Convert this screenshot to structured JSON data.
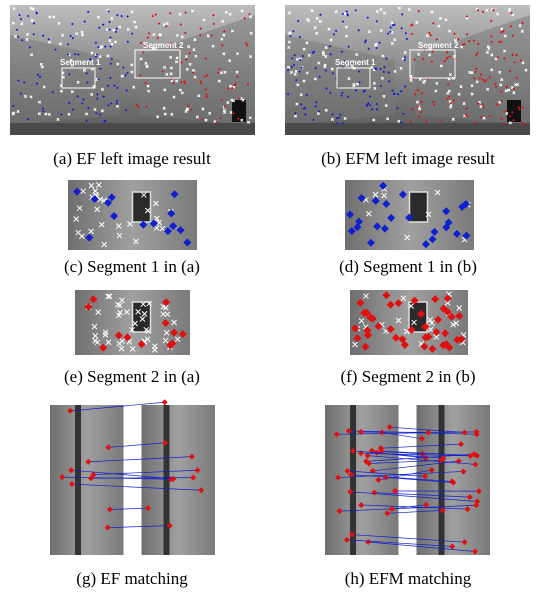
{
  "figure": {
    "panels": [
      {
        "caption": "(a) EF left image result",
        "labels": [
          "Segment 1",
          "Segment 2"
        ]
      },
      {
        "caption": "(b) EFM left image result",
        "labels": [
          "Segment 1",
          "Segment 2"
        ]
      },
      {
        "caption": "(c) Segment 1 in (a)"
      },
      {
        "caption": "(d) Segment 1 in (b)"
      },
      {
        "caption": "(e) Segment 2 in (a)"
      },
      {
        "caption": "(f) Segment 2 in (b)"
      },
      {
        "caption": "(g) EF matching"
      },
      {
        "caption": "(h) EFM matching"
      }
    ]
  }
}
